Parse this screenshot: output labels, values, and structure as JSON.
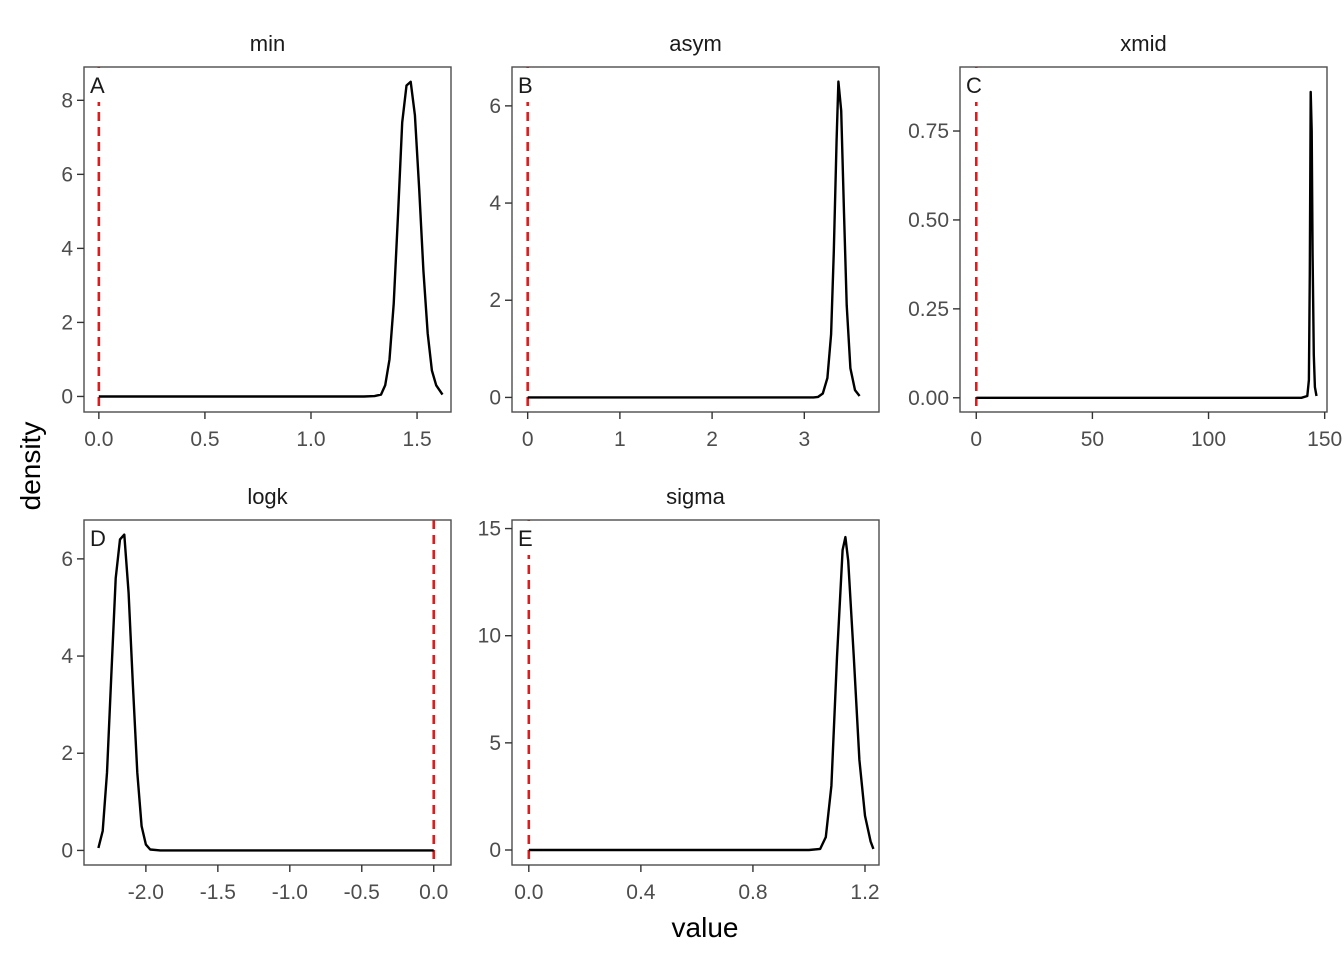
{
  "figure": {
    "xlabel": "value",
    "ylabel": "density"
  },
  "colors": {
    "density_line": "#000000",
    "reference_line": "#e31a1c",
    "panel_border": "#4d4d4d",
    "tick_text": "#4d4d4d"
  },
  "chart_data": [
    {
      "type": "line",
      "title": "min",
      "tag": "A",
      "reference_x": 0,
      "xlim": [
        -0.07,
        1.66
      ],
      "ylim": [
        -0.42,
        8.9
      ],
      "xticks": [
        0,
        0.5,
        1,
        1.5
      ],
      "xtick_labels": [
        "0.0",
        "0.5",
        "1.0",
        "1.5"
      ],
      "yticks": [
        0,
        2,
        4,
        6,
        8
      ],
      "ytick_labels": [
        "0",
        "2",
        "4",
        "6",
        "8"
      ],
      "x": [
        0,
        1.25,
        1.3,
        1.33,
        1.35,
        1.37,
        1.39,
        1.41,
        1.43,
        1.45,
        1.47,
        1.49,
        1.51,
        1.53,
        1.55,
        1.57,
        1.59,
        1.62
      ],
      "y": [
        0,
        0,
        0.01,
        0.05,
        0.3,
        1.0,
        2.5,
        4.9,
        7.4,
        8.4,
        8.5,
        7.6,
        5.6,
        3.4,
        1.7,
        0.7,
        0.3,
        0.05
      ]
    },
    {
      "type": "line",
      "title": "asym",
      "tag": "B",
      "reference_x": 0,
      "xlim": [
        -0.17,
        3.81
      ],
      "ylim": [
        -0.3,
        6.8
      ],
      "xticks": [
        0,
        1,
        2,
        3
      ],
      "xtick_labels": [
        "0",
        "1",
        "2",
        "3"
      ],
      "yticks": [
        0,
        2,
        4,
        6
      ],
      "ytick_labels": [
        "0",
        "2",
        "4",
        "6"
      ],
      "x": [
        0,
        3.1,
        3.15,
        3.2,
        3.25,
        3.29,
        3.32,
        3.35,
        3.37,
        3.4,
        3.43,
        3.46,
        3.5,
        3.55,
        3.6
      ],
      "y": [
        0,
        0,
        0.01,
        0.08,
        0.4,
        1.3,
        3.0,
        5.3,
        6.5,
        5.9,
        3.8,
        1.9,
        0.6,
        0.15,
        0.03
      ]
    },
    {
      "type": "line",
      "title": "xmid",
      "tag": "C",
      "reference_x": 0,
      "xlim": [
        -7,
        151
      ],
      "ylim": [
        -0.04,
        0.93
      ],
      "xticks": [
        0,
        50,
        100,
        150
      ],
      "xtick_labels": [
        "0",
        "50",
        "100",
        "150"
      ],
      "yticks": [
        0,
        0.25,
        0.5,
        0.75
      ],
      "ytick_labels": [
        "0.00",
        "0.25",
        "0.50",
        "0.75"
      ],
      "x": [
        0,
        140,
        142.5,
        143.2,
        143.6,
        144,
        144.4,
        144.8,
        145.3,
        145.8,
        146.5
      ],
      "y": [
        0,
        0,
        0.005,
        0.05,
        0.35,
        0.86,
        0.75,
        0.4,
        0.12,
        0.03,
        0.005
      ]
    },
    {
      "type": "line",
      "title": "logk",
      "tag": "D",
      "reference_x": 0,
      "xlim": [
        -2.43,
        0.12
      ],
      "ylim": [
        -0.3,
        6.8
      ],
      "xticks": [
        -2,
        -1.5,
        -1,
        -0.5,
        0
      ],
      "xtick_labels": [
        "-2.0",
        "-1.5",
        "-1.0",
        "-0.5",
        "0.0"
      ],
      "yticks": [
        0,
        2,
        4,
        6
      ],
      "ytick_labels": [
        "0",
        "2",
        "4",
        "6"
      ],
      "x": [
        -2.33,
        -2.3,
        -2.27,
        -2.24,
        -2.21,
        -2.18,
        -2.15,
        -2.12,
        -2.09,
        -2.06,
        -2.03,
        -2.0,
        -1.97,
        -1.9,
        0
      ],
      "y": [
        0.05,
        0.4,
        1.6,
        3.6,
        5.6,
        6.4,
        6.5,
        5.3,
        3.4,
        1.6,
        0.5,
        0.12,
        0.02,
        0,
        0
      ]
    },
    {
      "type": "line",
      "title": "sigma",
      "tag": "E",
      "reference_x": 0,
      "xlim": [
        -0.06,
        1.25
      ],
      "ylim": [
        -0.7,
        15.4
      ],
      "xticks": [
        0,
        0.4,
        0.8,
        1.2
      ],
      "xtick_labels": [
        "0.0",
        "0.4",
        "0.8",
        "1.2"
      ],
      "yticks": [
        0,
        5,
        10,
        15
      ],
      "ytick_labels": [
        "0",
        "5",
        "10",
        "15"
      ],
      "x": [
        0,
        1.0,
        1.04,
        1.06,
        1.08,
        1.1,
        1.12,
        1.13,
        1.14,
        1.16,
        1.18,
        1.2,
        1.22,
        1.23
      ],
      "y": [
        0,
        0,
        0.05,
        0.6,
        3.0,
        9.0,
        14.0,
        14.6,
        13.5,
        9.0,
        4.2,
        1.6,
        0.4,
        0.05
      ]
    }
  ]
}
